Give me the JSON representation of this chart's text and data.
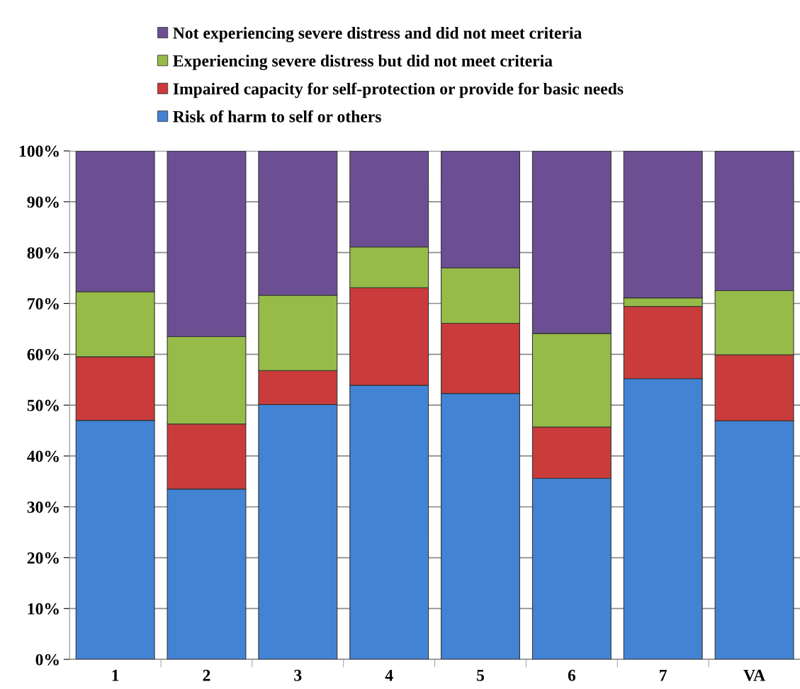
{
  "chart_data": {
    "type": "bar",
    "stacked": true,
    "categories": [
      "1",
      "2",
      "3",
      "4",
      "5",
      "6",
      "7",
      "VA"
    ],
    "series": [
      {
        "name": "Risk of harm to self or others",
        "color": "#4383d4",
        "values": [
          47.0,
          33.5,
          50.1,
          53.9,
          52.3,
          35.6,
          55.2,
          46.9
        ]
      },
      {
        "name": "Impaired capacity for self-protection or provide for basic needs",
        "color": "#c93c3b",
        "values": [
          12.5,
          12.8,
          6.7,
          19.2,
          13.8,
          10.1,
          14.2,
          13.0
        ]
      },
      {
        "name": "Experiencing severe distress but did not meet criteria",
        "color": "#97bb48",
        "values": [
          12.8,
          17.2,
          14.8,
          8.0,
          10.9,
          18.4,
          1.7,
          12.6
        ]
      },
      {
        "name": "Not experiencing severe distress and did not meet criteria",
        "color": "#6c4f93",
        "values": [
          27.7,
          36.5,
          28.4,
          18.9,
          23.0,
          35.9,
          28.9,
          27.5
        ]
      }
    ],
    "ylim": [
      0,
      100
    ],
    "yticks": [
      {
        "value": 0,
        "label": "0%"
      },
      {
        "value": 10,
        "label": "10%"
      },
      {
        "value": 20,
        "label": "20%"
      },
      {
        "value": 30,
        "label": "30%"
      },
      {
        "value": 40,
        "label": "40%"
      },
      {
        "value": 50,
        "label": "50%"
      },
      {
        "value": 60,
        "label": "60%"
      },
      {
        "value": 70,
        "label": "70%"
      },
      {
        "value": 80,
        "label": "80%"
      },
      {
        "value": 90,
        "label": "90%"
      },
      {
        "value": 100,
        "label": "100%"
      }
    ],
    "grid": "y",
    "legend": "top"
  }
}
